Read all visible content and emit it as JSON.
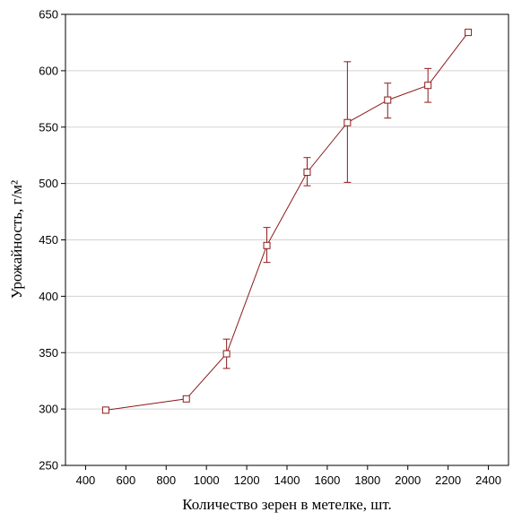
{
  "chart_data": {
    "type": "line",
    "title": "",
    "xlabel": "Количество зерен в метелке, шт.",
    "ylabel": "Урожайность, г/м²",
    "xlim": [
      300,
      2500
    ],
    "ylim": [
      250,
      650
    ],
    "xticks": [
      400,
      600,
      800,
      1000,
      1200,
      1400,
      1600,
      1800,
      2000,
      2200,
      2400
    ],
    "yticks": [
      250,
      300,
      350,
      400,
      450,
      500,
      550,
      600,
      650
    ],
    "grid": "horizontal",
    "legend": "none",
    "series": [
      {
        "color": "#8b1a1a",
        "marker": "square",
        "points": [
          {
            "x": 500,
            "y": 299,
            "err_low": null,
            "err_high": null
          },
          {
            "x": 900,
            "y": 309,
            "err_low": null,
            "err_high": null
          },
          {
            "x": 1100,
            "y": 349,
            "err_low": 336,
            "err_high": 362
          },
          {
            "x": 1300,
            "y": 445,
            "err_low": 430,
            "err_high": 461
          },
          {
            "x": 1500,
            "y": 510,
            "err_low": 498,
            "err_high": 523
          },
          {
            "x": 1700,
            "y": 554,
            "err_low": 501,
            "err_high": 608
          },
          {
            "x": 1900,
            "y": 574,
            "err_low": 558,
            "err_high": 589
          },
          {
            "x": 2100,
            "y": 587,
            "err_low": 572,
            "err_high": 602
          },
          {
            "x": 2300,
            "y": 634,
            "err_low": null,
            "err_high": null
          }
        ]
      }
    ]
  }
}
